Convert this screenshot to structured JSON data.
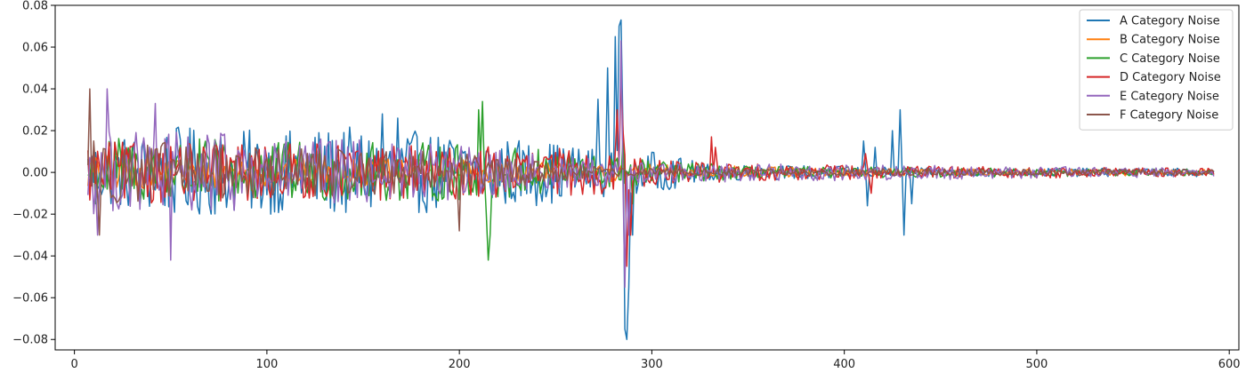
{
  "chart_data": {
    "type": "line",
    "title": "",
    "xlabel": "",
    "ylabel": "",
    "xlim": [
      -10,
      605
    ],
    "ylim": [
      -0.085,
      0.08
    ],
    "x_ticks": [
      0,
      100,
      200,
      300,
      400,
      500,
      600
    ],
    "x_tick_labels": [
      "0",
      "100",
      "200",
      "300",
      "400",
      "500",
      "600"
    ],
    "y_ticks": [
      0.08,
      0.06,
      0.04,
      0.02,
      0.0,
      -0.02,
      -0.04,
      -0.06,
      -0.08
    ],
    "y_tick_labels": [
      "0.08",
      "0.06",
      "0.04",
      "0.02",
      "0.00",
      "−0.02",
      "−0.04",
      "−0.06",
      "−0.08"
    ],
    "grid": false,
    "legend_position": "top-right",
    "x_range": [
      7,
      592
    ],
    "series": [
      {
        "name": "A Category Noise",
        "color": "#1f77b4",
        "envelope": [
          [
            7,
            0.015
          ],
          [
            50,
            0.022
          ],
          [
            100,
            0.02
          ],
          [
            150,
            0.022
          ],
          [
            200,
            0.018
          ],
          [
            240,
            0.016
          ],
          [
            270,
            0.012
          ],
          [
            300,
            0.01
          ],
          [
            330,
            0.004
          ],
          [
            400,
            0.003
          ],
          [
            450,
            0.002
          ],
          [
            500,
            0.002
          ],
          [
            592,
            0.002
          ]
        ],
        "spikes": [
          [
            272,
            0.035
          ],
          [
            277,
            0.05
          ],
          [
            281,
            0.065
          ],
          [
            283,
            0.07
          ],
          [
            284,
            0.073
          ],
          [
            285,
            0.02
          ],
          [
            286,
            -0.075
          ],
          [
            287,
            -0.08
          ],
          [
            288,
            -0.055
          ],
          [
            290,
            -0.03
          ],
          [
            292,
            -0.01
          ],
          [
            410,
            0.015
          ],
          [
            412,
            -0.016
          ],
          [
            416,
            0.012
          ],
          [
            425,
            0.02
          ],
          [
            429,
            0.03
          ],
          [
            431,
            -0.03
          ],
          [
            435,
            -0.015
          ],
          [
            160,
            0.028
          ],
          [
            168,
            0.026
          ]
        ]
      },
      {
        "name": "B Category Noise",
        "color": "#ff7f0e",
        "envelope": [
          [
            7,
            0.008
          ],
          [
            100,
            0.007
          ],
          [
            200,
            0.006
          ],
          [
            300,
            0.004
          ],
          [
            400,
            0.002
          ],
          [
            592,
            0.0015
          ]
        ],
        "spikes": []
      },
      {
        "name": "C Category Noise",
        "color": "#2ca02c",
        "envelope": [
          [
            7,
            0.018
          ],
          [
            100,
            0.015
          ],
          [
            200,
            0.014
          ],
          [
            260,
            0.01
          ],
          [
            300,
            0.006
          ],
          [
            350,
            0.003
          ],
          [
            592,
            0.0015
          ]
        ],
        "spikes": [
          [
            210,
            0.03
          ],
          [
            212,
            0.034
          ],
          [
            214,
            -0.02
          ],
          [
            215,
            -0.042
          ],
          [
            216,
            -0.03
          ],
          [
            285,
            0.017
          ],
          [
            290,
            -0.015
          ]
        ]
      },
      {
        "name": "D Category Noise",
        "color": "#d62728",
        "envelope": [
          [
            7,
            0.015
          ],
          [
            100,
            0.014
          ],
          [
            200,
            0.013
          ],
          [
            270,
            0.011
          ],
          [
            300,
            0.007
          ],
          [
            350,
            0.004
          ],
          [
            450,
            0.003
          ],
          [
            592,
            0.002
          ]
        ],
        "spikes": [
          [
            282,
            0.03
          ],
          [
            284,
            0.046
          ],
          [
            285,
            0.02
          ],
          [
            287,
            -0.045
          ],
          [
            289,
            -0.03
          ],
          [
            331,
            0.017
          ],
          [
            333,
            0.012
          ],
          [
            411,
            0.009
          ],
          [
            414,
            -0.01
          ]
        ]
      },
      {
        "name": "E Category Noise",
        "color": "#9467bd",
        "envelope": [
          [
            7,
            0.02
          ],
          [
            60,
            0.02
          ],
          [
            120,
            0.017
          ],
          [
            200,
            0.013
          ],
          [
            250,
            0.008
          ],
          [
            300,
            0.005
          ],
          [
            592,
            0.002
          ]
        ],
        "spikes": [
          [
            17,
            0.04
          ],
          [
            12,
            -0.03
          ],
          [
            50,
            -0.042
          ],
          [
            42,
            0.033
          ],
          [
            284,
            0.063
          ],
          [
            286,
            -0.055
          ],
          [
            288,
            -0.03
          ]
        ]
      },
      {
        "name": "F Category Noise",
        "color": "#8c564b",
        "envelope": [
          [
            7,
            0.016
          ],
          [
            100,
            0.012
          ],
          [
            200,
            0.01
          ],
          [
            240,
            0.006
          ],
          [
            280,
            0.002
          ],
          [
            300,
            0.002
          ],
          [
            592,
            0.0015
          ]
        ],
        "spikes": [
          [
            8,
            0.04
          ],
          [
            10,
            0.015
          ],
          [
            13,
            -0.03
          ],
          [
            200,
            -0.028
          ]
        ]
      }
    ]
  }
}
